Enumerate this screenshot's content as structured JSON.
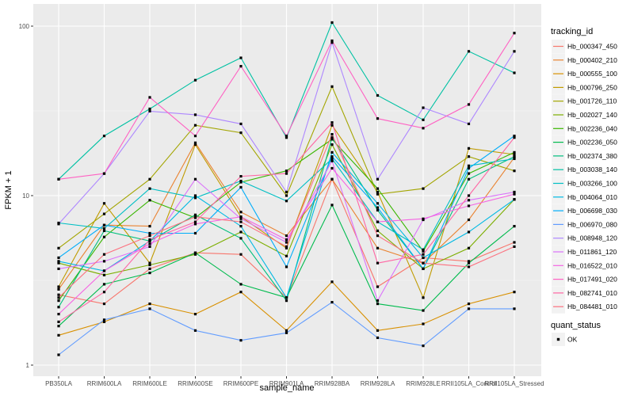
{
  "chart_data": {
    "type": "line",
    "title": "",
    "xlabel": "sample_name",
    "ylabel": "FPKM + 1",
    "yscale": "log10",
    "ylim": [
      0.95,
      110
    ],
    "yticks": [
      1,
      10,
      100
    ],
    "ytick_labels": [
      "1",
      "10",
      "100"
    ],
    "grid": true,
    "categories": [
      "PB350LA",
      "RRIM600LA",
      "RRIM600LE",
      "RRIM600SE",
      "RRIM600PE",
      "RRIM901LA",
      "RRIM928BA",
      "RRIM928LA",
      "RRIM928LE",
      "RRII105LA_Control",
      "RRII105LA_Stressed"
    ],
    "legend": {
      "title": "tracking_id",
      "position": "right",
      "shape_title": "quant_status",
      "shape_entries": [
        "OK"
      ]
    },
    "series": [
      {
        "name": "Hb_000347_450",
        "color": "#F8766D",
        "values": [
          2.6,
          2.3,
          3.7,
          4.6,
          4.5,
          2.5,
          12.5,
          2.9,
          4.3,
          4.1,
          5.3
        ]
      },
      {
        "name": "Hb_000402_210",
        "color": "#EA8331",
        "values": [
          2.8,
          6.7,
          6.6,
          20.5,
          8.0,
          5.8,
          12.5,
          4.9,
          4.0,
          7.2,
          16.8
        ]
      },
      {
        "name": "Hb_000555_100",
        "color": "#D89000",
        "values": [
          1.5,
          1.8,
          2.3,
          2.0,
          2.7,
          1.6,
          3.1,
          1.6,
          1.75,
          2.3,
          2.7
        ]
      },
      {
        "name": "Hb_000796_250",
        "color": "#C09B00",
        "values": [
          2.9,
          9.0,
          4.0,
          20.0,
          7.5,
          4.9,
          26.0,
          10.5,
          2.5,
          19.0,
          17.5
        ]
      },
      {
        "name": "Hb_001726_110",
        "color": "#A3A500",
        "values": [
          4.9,
          7.8,
          12.5,
          26.0,
          23.5,
          10.0,
          44.0,
          10.2,
          11.0,
          17.0,
          14.0
        ]
      },
      {
        "name": "Hb_002027_140",
        "color": "#7CAE00",
        "values": [
          4.0,
          3.4,
          3.9,
          4.5,
          6.1,
          4.4,
          20.0,
          6.2,
          3.7,
          4.9,
          9.5
        ]
      },
      {
        "name": "Hb_002236_040",
        "color": "#39B600",
        "values": [
          2.4,
          5.7,
          9.4,
          7.4,
          12.0,
          14.0,
          21.5,
          11.0,
          4.7,
          13.5,
          18.0
        ]
      },
      {
        "name": "Hb_002236_050",
        "color": "#00BB4E",
        "values": [
          1.7,
          3.0,
          3.5,
          4.6,
          3.0,
          2.5,
          8.8,
          2.3,
          2.1,
          4.0,
          6.6
        ]
      },
      {
        "name": "Hb_002374_380",
        "color": "#00BF7D",
        "values": [
          2.2,
          6.2,
          5.4,
          7.7,
          5.6,
          2.4,
          22.0,
          8.2,
          3.7,
          12.5,
          17.0
        ]
      },
      {
        "name": "Hb_003038_140",
        "color": "#00C1A3",
        "values": [
          12.5,
          22.5,
          32.5,
          48.0,
          65.0,
          22.0,
          105.0,
          39.0,
          28.0,
          71.0,
          53.0
        ]
      },
      {
        "name": "Hb_003266_100",
        "color": "#00BFC4",
        "values": [
          6.9,
          6.4,
          11.0,
          9.7,
          12.2,
          9.3,
          16.5,
          7.0,
          4.8,
          15.0,
          16.5
        ]
      },
      {
        "name": "Hb_004064_010",
        "color": "#00B9E3",
        "values": [
          4.1,
          3.6,
          5.4,
          10.0,
          6.6,
          2.5,
          18.0,
          9.0,
          4.3,
          6.1,
          9.5
        ]
      },
      {
        "name": "Hb_006698_030",
        "color": "#00ADFA",
        "values": [
          4.3,
          6.7,
          6.0,
          6.0,
          11.2,
          3.8,
          17.0,
          8.5,
          3.7,
          14.5,
          22.5
        ]
      },
      {
        "name": "Hb_006970_080",
        "color": "#619CFF",
        "values": [
          1.15,
          1.85,
          2.15,
          1.6,
          1.4,
          1.55,
          2.35,
          1.45,
          1.3,
          2.15,
          2.15
        ]
      },
      {
        "name": "Hb_008948_120",
        "color": "#AE87FF",
        "values": [
          6.8,
          13.5,
          31.5,
          30.0,
          26.5,
          10.5,
          80.0,
          12.5,
          33.0,
          26.5,
          71.0
        ]
      },
      {
        "name": "Hb_011861_120",
        "color": "#DB72FB",
        "values": [
          3.7,
          4.1,
          5.0,
          12.5,
          7.3,
          5.3,
          16.0,
          2.4,
          7.2,
          9.4,
          10.5
        ]
      },
      {
        "name": "Hb_016522_010",
        "color": "#F564E3",
        "values": [
          2.0,
          3.6,
          5.2,
          6.8,
          7.5,
          5.5,
          14.5,
          7.0,
          7.3,
          8.7,
          10.2
        ]
      },
      {
        "name": "Hb_017491_020",
        "color": "#FF61C3",
        "values": [
          12.5,
          13.5,
          38.0,
          22.5,
          58.0,
          22.5,
          82.0,
          28.5,
          25.0,
          34.5,
          91.0
        ]
      },
      {
        "name": "Hb_082741_010",
        "color": "#FF67A4",
        "values": [
          1.8,
          2.7,
          5.5,
          7.0,
          13.0,
          13.5,
          27.0,
          4.0,
          4.5,
          10.0,
          22.0
        ]
      },
      {
        "name": "Hb_084481_010",
        "color": "#FC717F",
        "values": [
          2.5,
          4.5,
          5.8,
          7.5,
          7.0,
          5.0,
          23.0,
          5.8,
          4.0,
          3.8,
          5.0
        ]
      }
    ]
  }
}
